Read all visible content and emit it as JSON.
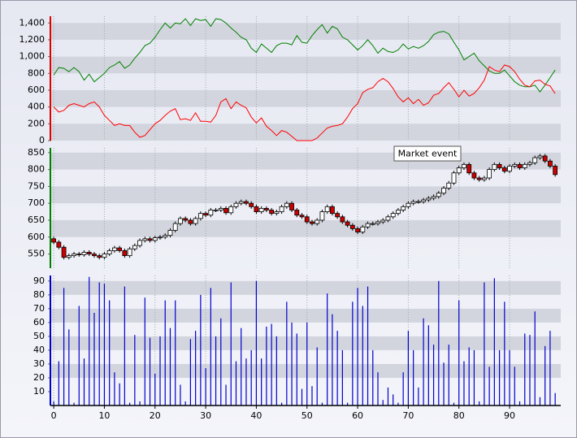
{
  "chart_data": [
    {
      "type": "line",
      "axis_color": "#e00000",
      "xlim": [
        -0.5,
        100.1
      ],
      "ylim": [
        0,
        1480
      ],
      "yticks": [
        0,
        200,
        400,
        600,
        800,
        {
          "value": 1000,
          "label": "1,000"
        },
        {
          "value": 1200,
          "label": "1,200"
        },
        {
          "value": 1400,
          "label": "1,400"
        }
      ],
      "series": [
        {
          "color": "#008000",
          "values": [
            780,
            870,
            860,
            820,
            870,
            820,
            720,
            790,
            700,
            750,
            800,
            870,
            900,
            940,
            860,
            900,
            980,
            1050,
            1130,
            1160,
            1230,
            1320,
            1400,
            1340,
            1400,
            1390,
            1450,
            1370,
            1450,
            1430,
            1440,
            1360,
            1450,
            1440,
            1400,
            1340,
            1290,
            1230,
            1200,
            1100,
            1050,
            1150,
            1100,
            1050,
            1130,
            1160,
            1160,
            1140,
            1250,
            1170,
            1160,
            1250,
            1320,
            1380,
            1280,
            1360,
            1330,
            1230,
            1200,
            1140,
            1080,
            1130,
            1200,
            1130,
            1040,
            1100,
            1060,
            1050,
            1080,
            1150,
            1090,
            1120,
            1100,
            1130,
            1180,
            1260,
            1290,
            1300,
            1270,
            1170,
            1080,
            960,
            1000,
            1040,
            950,
            890,
            830,
            800,
            800,
            840,
            770,
            700,
            660,
            640,
            640,
            660,
            580,
            660,
            750,
            840
          ]
        },
        {
          "color": "#ff0000",
          "values": [
            400,
            340,
            360,
            420,
            440,
            420,
            400,
            440,
            460,
            400,
            300,
            240,
            180,
            200,
            180,
            180,
            100,
            40,
            60,
            130,
            200,
            240,
            300,
            350,
            380,
            250,
            260,
            240,
            330,
            230,
            230,
            220,
            300,
            460,
            500,
            380,
            460,
            420,
            390,
            280,
            210,
            270,
            170,
            120,
            60,
            120,
            100,
            50,
            0,
            0,
            0,
            0,
            30,
            90,
            150,
            170,
            180,
            200,
            280,
            380,
            440,
            570,
            610,
            630,
            700,
            740,
            700,
            620,
            520,
            460,
            510,
            440,
            490,
            420,
            450,
            540,
            560,
            630,
            690,
            610,
            520,
            600,
            530,
            560,
            630,
            720,
            880,
            840,
            820,
            900,
            880,
            820,
            730,
            660,
            640,
            710,
            720,
            670,
            650,
            560
          ]
        }
      ]
    },
    {
      "type": "candlestick",
      "axis_color": "#008000",
      "xlim": [
        -0.5,
        100.1
      ],
      "ylim": [
        508,
        864
      ],
      "yticks": [
        550,
        600,
        650,
        700,
        750,
        800,
        850
      ],
      "annotation": "Market event",
      "open": [
        595,
        585,
        570,
        540,
        545,
        550,
        548,
        555,
        550,
        545,
        540,
        550,
        560,
        568,
        560,
        545,
        565,
        575,
        590,
        595,
        590,
        598,
        600,
        605,
        620,
        640,
        655,
        650,
        640,
        655,
        670,
        665,
        680,
        680,
        685,
        672,
        690,
        700,
        705,
        700,
        690,
        675,
        685,
        680,
        670,
        675,
        690,
        700,
        680,
        665,
        660,
        645,
        640,
        650,
        675,
        690,
        670,
        660,
        645,
        635,
        625,
        615,
        630,
        640,
        640,
        645,
        650,
        660,
        670,
        680,
        690,
        700,
        705,
        705,
        710,
        715,
        720,
        730,
        745,
        760,
        790,
        805,
        815,
        790,
        775,
        770,
        775,
        800,
        815,
        805,
        795,
        810,
        815,
        805,
        815,
        820,
        835,
        840,
        825,
        810
      ],
      "high": [
        601,
        591,
        576,
        551,
        556,
        556,
        561,
        561,
        556,
        551,
        556,
        566,
        574,
        574,
        566,
        571,
        581,
        596,
        601,
        601,
        604,
        606,
        611,
        626,
        646,
        661,
        661,
        656,
        661,
        676,
        676,
        686,
        686,
        691,
        691,
        696,
        706,
        711,
        711,
        706,
        696,
        691,
        691,
        686,
        681,
        696,
        706,
        706,
        686,
        671,
        666,
        651,
        656,
        681,
        696,
        696,
        676,
        666,
        651,
        641,
        631,
        636,
        646,
        646,
        651,
        656,
        666,
        676,
        686,
        696,
        706,
        711,
        711,
        716,
        721,
        726,
        736,
        751,
        766,
        796,
        811,
        821,
        821,
        796,
        781,
        781,
        806,
        821,
        821,
        811,
        816,
        821,
        821,
        821,
        826,
        841,
        846,
        846,
        831,
        816
      ],
      "low": [
        579,
        564,
        534,
        534,
        539,
        542,
        542,
        544,
        539,
        534,
        534,
        544,
        554,
        554,
        539,
        539,
        559,
        569,
        584,
        584,
        584,
        592,
        594,
        599,
        614,
        634,
        644,
        634,
        634,
        649,
        659,
        659,
        674,
        674,
        666,
        666,
        684,
        694,
        694,
        684,
        669,
        669,
        674,
        664,
        664,
        669,
        684,
        674,
        659,
        654,
        639,
        634,
        634,
        644,
        669,
        664,
        654,
        639,
        629,
        619,
        609,
        609,
        624,
        634,
        634,
        639,
        644,
        654,
        664,
        674,
        684,
        694,
        699,
        699,
        704,
        709,
        714,
        724,
        739,
        754,
        784,
        799,
        784,
        769,
        764,
        764,
        769,
        794,
        799,
        789,
        789,
        804,
        799,
        799,
        809,
        814,
        829,
        819,
        804,
        779
      ],
      "close": [
        585,
        570,
        540,
        545,
        550,
        548,
        555,
        550,
        545,
        540,
        550,
        560,
        568,
        560,
        545,
        565,
        575,
        590,
        595,
        590,
        598,
        600,
        605,
        620,
        640,
        655,
        650,
        640,
        655,
        670,
        665,
        680,
        680,
        685,
        672,
        690,
        700,
        705,
        700,
        690,
        675,
        685,
        680,
        670,
        675,
        690,
        700,
        680,
        665,
        660,
        645,
        640,
        650,
        675,
        690,
        670,
        660,
        645,
        635,
        625,
        615,
        630,
        640,
        640,
        645,
        650,
        660,
        670,
        680,
        690,
        700,
        705,
        705,
        710,
        715,
        720,
        730,
        745,
        760,
        790,
        805,
        815,
        790,
        775,
        770,
        775,
        800,
        815,
        805,
        795,
        810,
        815,
        805,
        815,
        820,
        835,
        840,
        825,
        810,
        785
      ]
    },
    {
      "type": "bar",
      "axis_color": "#0000cc",
      "color": "#0000cc",
      "xlim": [
        -0.5,
        100.1
      ],
      "ylim": [
        0,
        94
      ],
      "xticks": [
        0,
        10,
        20,
        30,
        40,
        50,
        60,
        70,
        80,
        90
      ],
      "yticks": [
        10,
        20,
        30,
        40,
        50,
        60,
        70,
        80,
        90
      ],
      "values": [
        3,
        32,
        85,
        55,
        2,
        72,
        34,
        93,
        67,
        89,
        88,
        76,
        24,
        16,
        86,
        2,
        51,
        3,
        78,
        49,
        23,
        50,
        76,
        56,
        76,
        15,
        3,
        48,
        54,
        80,
        27,
        85,
        50,
        63,
        15,
        89,
        32,
        56,
        34,
        40,
        90,
        34,
        57,
        59,
        50,
        2,
        75,
        60,
        52,
        12,
        60,
        14,
        42,
        2,
        81,
        66,
        54,
        40,
        2,
        75,
        85,
        72,
        86,
        40,
        24,
        4,
        13,
        8,
        2,
        24,
        54,
        40,
        13,
        63,
        58,
        44,
        90,
        31,
        44,
        2,
        76,
        32,
        42,
        40,
        3,
        89,
        28,
        92,
        40,
        75,
        40,
        28,
        3,
        52,
        51,
        68,
        6,
        43,
        54,
        9
      ]
    }
  ]
}
